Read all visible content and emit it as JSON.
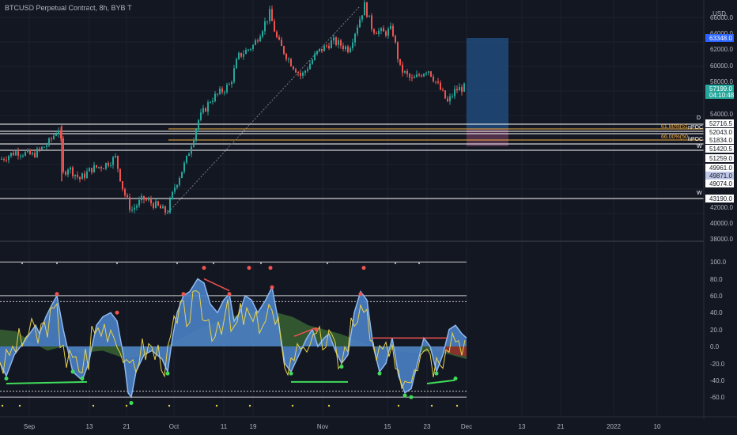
{
  "header": {
    "title": "BTCUSD Perpetual Contract, 8h, BYBIT",
    "currency": "USD"
  },
  "colors": {
    "background": "#131722",
    "up": "#26a69a",
    "down": "#ef5350",
    "grid": "#1e222d",
    "axis_text": "#b2b5be",
    "hline": "#ffffff",
    "fib": "#f5b041",
    "position_box": "#1e4a7a",
    "osc_blue": "#4a7fc4",
    "osc_green": "#5aa85a",
    "osc_yellow": "#e8d34a",
    "osc_red": "#9c2a2a"
  },
  "main_axis": {
    "labels": [
      "66000.0",
      "64000.0",
      "62000.0",
      "60000.0",
      "58000.0",
      "54000.0",
      "42000.0",
      "40000.0",
      "38000.0"
    ],
    "tags": [
      {
        "text": "63348.0",
        "bg": "#2962ff",
        "fg": "#ffffff"
      },
      {
        "text": "57199.0",
        "bg": "#26a69a",
        "fg": "#ffffff"
      },
      {
        "text": "04:10:48",
        "bg": "#26a69a",
        "fg": "#ffffff"
      },
      {
        "text": "52716.5",
        "bg": "#ffffff",
        "fg": "#131722"
      },
      {
        "text": "52043.0",
        "bg": "#ffffff",
        "fg": "#131722"
      },
      {
        "text": "51834.0",
        "bg": "#ffffff",
        "fg": "#131722"
      },
      {
        "text": "51420.5",
        "bg": "#ffffff",
        "fg": "#131722"
      },
      {
        "text": "51259.0",
        "bg": "#ffffff",
        "fg": "#131722"
      },
      {
        "text": "49961.0",
        "bg": "#ffffff",
        "fg": "#131722"
      },
      {
        "text": "49871.0",
        "bg": "#c0c8e8",
        "fg": "#131722"
      },
      {
        "text": "49074.0",
        "bg": "#ffffff",
        "fg": "#131722"
      },
      {
        "text": "43190.0",
        "bg": "#ffffff",
        "fg": "#131722"
      }
    ]
  },
  "level_labels": [
    {
      "text": "D",
      "color": "#ffffff"
    },
    {
      "text": "W",
      "color": "#ffffff"
    },
    {
      "text": "W",
      "color": "#ffffff"
    },
    {
      "text": "61.80%(51",
      "color": "#f5b041"
    },
    {
      "text": "66.00%(50",
      "color": "#f5b041"
    },
    {
      "text": "nPOC",
      "color": "#ffffff"
    },
    {
      "text": "hPOC",
      "color": "#ffffff"
    }
  ],
  "osc_axis": {
    "labels": [
      "100.0",
      "80.0",
      "60.0",
      "40.0",
      "20.0",
      "0.0",
      "-20.0",
      "-40.0",
      "-60.0"
    ]
  },
  "time_axis": {
    "labels": [
      "Sep",
      "13",
      "21",
      "Oct",
      "11",
      "19",
      "Nov",
      "15",
      "23",
      "Dec",
      "13",
      "21",
      "2022",
      "10"
    ]
  }
}
